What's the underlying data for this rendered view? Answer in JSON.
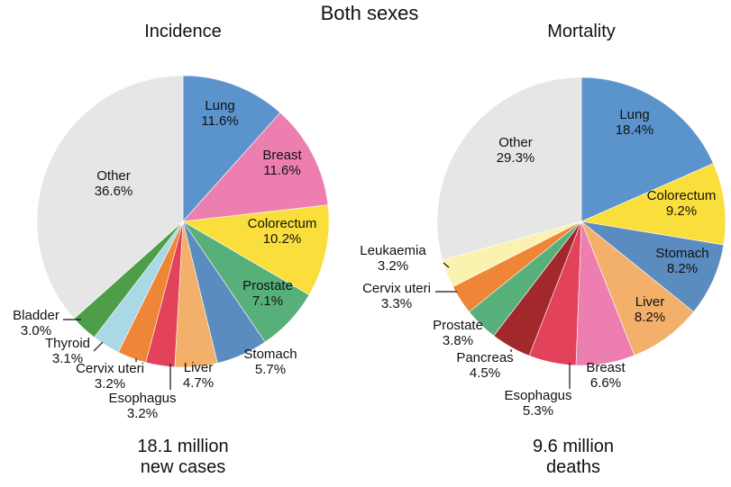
{
  "title": "Both sexes",
  "chart_data": [
    {
      "type": "pie",
      "title": "Incidence",
      "total_line1": "18.1 million",
      "total_line2": "new cases",
      "slices": [
        {
          "name": "Lung",
          "pct": "11.6%",
          "value": 11.6,
          "color": "#5b93cc"
        },
        {
          "name": "Breast",
          "pct": "11.6%",
          "value": 11.6,
          "color": "#ec7fb0"
        },
        {
          "name": "Colorectum",
          "pct": "10.2%",
          "value": 10.2,
          "color": "#fadf3c"
        },
        {
          "name": "Prostate",
          "pct": "7.1%",
          "value": 7.1,
          "color": "#57b07a"
        },
        {
          "name": "Stomach",
          "pct": "5.7%",
          "value": 5.7,
          "color": "#5b8cc0"
        },
        {
          "name": "Liver",
          "pct": "4.7%",
          "value": 4.7,
          "color": "#f2b06a"
        },
        {
          "name": "Esophagus",
          "pct": "3.2%",
          "value": 3.2,
          "color": "#e2435b"
        },
        {
          "name": "Cervix uteri",
          "pct": "3.2%",
          "value": 3.2,
          "color": "#ef8536"
        },
        {
          "name": "Thyroid",
          "pct": "3.1%",
          "value": 3.1,
          "color": "#aad8e4"
        },
        {
          "name": "Bladder",
          "pct": "3.0%",
          "value": 3.0,
          "color": "#4e9d48"
        },
        {
          "name": "Other",
          "pct": "36.6%",
          "value": 36.6,
          "color": "#e6e6e6"
        }
      ]
    },
    {
      "type": "pie",
      "title": "Mortality",
      "total_line1": "9.6 million",
      "total_line2": "deaths",
      "slices": [
        {
          "name": "Lung",
          "pct": "18.4%",
          "value": 18.4,
          "color": "#5b93cc"
        },
        {
          "name": "Colorectum",
          "pct": "9.2%",
          "value": 9.2,
          "color": "#fadf3c"
        },
        {
          "name": "Stomach",
          "pct": "8.2%",
          "value": 8.2,
          "color": "#5b8cc0"
        },
        {
          "name": "Liver",
          "pct": "8.2%",
          "value": 8.2,
          "color": "#f2b06a"
        },
        {
          "name": "Breast",
          "pct": "6.6%",
          "value": 6.6,
          "color": "#ec7fb0"
        },
        {
          "name": "Esophagus",
          "pct": "5.3%",
          "value": 5.3,
          "color": "#e2435b"
        },
        {
          "name": "Pancreas",
          "pct": "4.5%",
          "value": 4.5,
          "color": "#a3282c"
        },
        {
          "name": "Prostate",
          "pct": "3.8%",
          "value": 3.8,
          "color": "#57b07a"
        },
        {
          "name": "Cervix uteri",
          "pct": "3.3%",
          "value": 3.3,
          "color": "#ef8536"
        },
        {
          "name": "Leukaemia",
          "pct": "3.2%",
          "value": 3.2,
          "color": "#fcf2b0"
        },
        {
          "name": "Other",
          "pct": "29.3%",
          "value": 29.3,
          "color": "#e6e6e6"
        }
      ]
    }
  ]
}
